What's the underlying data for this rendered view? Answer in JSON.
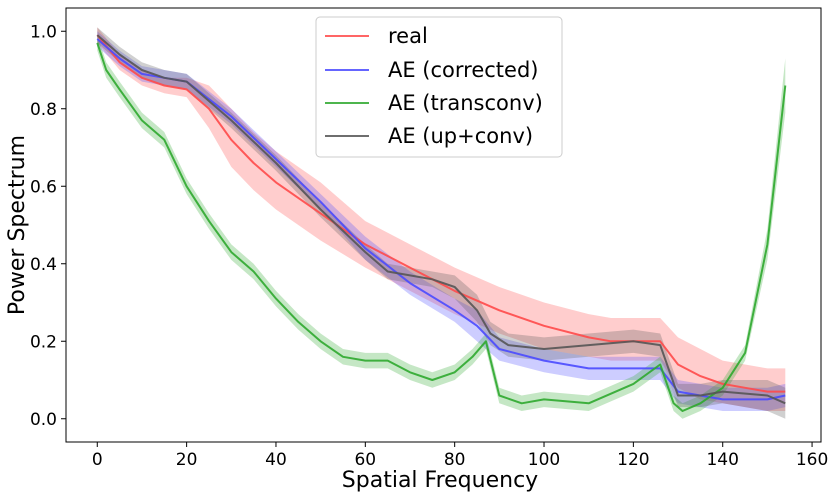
{
  "chart_data": {
    "type": "line",
    "title": "",
    "xlabel": "Spatial Frequency",
    "ylabel": "Power Spectrum",
    "xlim": [
      -7,
      162
    ],
    "ylim": [
      -0.06,
      1.06
    ],
    "xticks": [
      0,
      20,
      40,
      60,
      80,
      100,
      120,
      140,
      160
    ],
    "yticks": [
      0.0,
      0.2,
      0.4,
      0.6,
      0.8,
      1.0
    ],
    "xtick_labels": [
      "0",
      "20",
      "40",
      "60",
      "80",
      "100",
      "120",
      "140",
      "160"
    ],
    "ytick_labels": [
      "0.0",
      "0.2",
      "0.4",
      "0.6",
      "0.8",
      "1.0"
    ],
    "legend_position": "upper-center",
    "series": [
      {
        "name": "real",
        "color": "#ff4a4a",
        "x": [
          0,
          5,
          10,
          15,
          20,
          25,
          30,
          35,
          40,
          50,
          60,
          70,
          80,
          90,
          100,
          110,
          115,
          120,
          126,
          130,
          135,
          140,
          145,
          150,
          154
        ],
        "y": [
          0.99,
          0.92,
          0.88,
          0.86,
          0.85,
          0.8,
          0.72,
          0.66,
          0.61,
          0.53,
          0.45,
          0.39,
          0.33,
          0.28,
          0.24,
          0.21,
          0.2,
          0.2,
          0.2,
          0.14,
          0.11,
          0.09,
          0.08,
          0.07,
          0.07
        ],
        "upper": [
          1.01,
          0.94,
          0.9,
          0.88,
          0.88,
          0.86,
          0.8,
          0.74,
          0.69,
          0.61,
          0.51,
          0.45,
          0.39,
          0.34,
          0.3,
          0.27,
          0.26,
          0.26,
          0.26,
          0.21,
          0.18,
          0.15,
          0.14,
          0.13,
          0.13
        ],
        "lower": [
          0.97,
          0.9,
          0.86,
          0.84,
          0.83,
          0.75,
          0.65,
          0.59,
          0.54,
          0.46,
          0.39,
          0.33,
          0.27,
          0.22,
          0.18,
          0.16,
          0.15,
          0.15,
          0.15,
          0.08,
          0.05,
          0.04,
          0.03,
          0.02,
          0.02
        ]
      },
      {
        "name": "AE (corrected)",
        "color": "#4a4aff",
        "x": [
          0,
          5,
          10,
          15,
          20,
          30,
          40,
          50,
          60,
          70,
          80,
          85,
          90,
          100,
          110,
          120,
          126,
          130,
          140,
          150,
          154
        ],
        "y": [
          0.98,
          0.93,
          0.89,
          0.88,
          0.87,
          0.78,
          0.67,
          0.56,
          0.44,
          0.35,
          0.28,
          0.24,
          0.18,
          0.15,
          0.13,
          0.13,
          0.13,
          0.07,
          0.05,
          0.05,
          0.06
        ],
        "upper": [
          1.0,
          0.95,
          0.91,
          0.9,
          0.89,
          0.8,
          0.69,
          0.58,
          0.47,
          0.38,
          0.31,
          0.28,
          0.21,
          0.18,
          0.16,
          0.16,
          0.16,
          0.1,
          0.08,
          0.08,
          0.09
        ],
        "lower": [
          0.96,
          0.91,
          0.87,
          0.86,
          0.85,
          0.76,
          0.65,
          0.54,
          0.41,
          0.32,
          0.25,
          0.2,
          0.15,
          0.12,
          0.1,
          0.1,
          0.1,
          0.04,
          0.02,
          0.02,
          0.03
        ]
      },
      {
        "name": "AE (transconv)",
        "color": "#2ea82e",
        "x": [
          0,
          2,
          5,
          10,
          15,
          20,
          25,
          30,
          35,
          40,
          45,
          50,
          55,
          60,
          65,
          70,
          75,
          80,
          84,
          87,
          90,
          95,
          100,
          110,
          120,
          126,
          129,
          131,
          135,
          140,
          145,
          150,
          154
        ],
        "y": [
          0.97,
          0.9,
          0.85,
          0.77,
          0.72,
          0.6,
          0.51,
          0.43,
          0.38,
          0.31,
          0.25,
          0.2,
          0.16,
          0.15,
          0.15,
          0.12,
          0.1,
          0.12,
          0.16,
          0.2,
          0.06,
          0.04,
          0.05,
          0.04,
          0.09,
          0.14,
          0.04,
          0.02,
          0.04,
          0.08,
          0.17,
          0.45,
          0.86
        ],
        "upper": [
          0.99,
          0.92,
          0.87,
          0.79,
          0.74,
          0.62,
          0.53,
          0.45,
          0.4,
          0.33,
          0.27,
          0.22,
          0.18,
          0.17,
          0.17,
          0.14,
          0.12,
          0.14,
          0.18,
          0.22,
          0.08,
          0.06,
          0.07,
          0.06,
          0.11,
          0.16,
          0.06,
          0.04,
          0.06,
          0.1,
          0.19,
          0.49,
          0.93
        ],
        "lower": [
          0.95,
          0.88,
          0.83,
          0.75,
          0.7,
          0.58,
          0.49,
          0.41,
          0.36,
          0.29,
          0.23,
          0.18,
          0.14,
          0.13,
          0.13,
          0.1,
          0.08,
          0.1,
          0.14,
          0.18,
          0.04,
          0.02,
          0.03,
          0.02,
          0.07,
          0.12,
          0.02,
          0.0,
          0.02,
          0.06,
          0.15,
          0.41,
          0.79
        ]
      },
      {
        "name": "AE (up+conv)",
        "color": "#555555",
        "x": [
          0,
          5,
          10,
          15,
          20,
          30,
          40,
          50,
          60,
          65,
          70,
          75,
          80,
          85,
          88,
          92,
          100,
          110,
          120,
          126,
          130,
          135,
          140,
          150,
          154
        ],
        "y": [
          0.99,
          0.94,
          0.9,
          0.88,
          0.87,
          0.77,
          0.66,
          0.54,
          0.43,
          0.38,
          0.37,
          0.36,
          0.34,
          0.28,
          0.22,
          0.19,
          0.18,
          0.19,
          0.2,
          0.19,
          0.06,
          0.06,
          0.07,
          0.06,
          0.04
        ],
        "upper": [
          1.01,
          0.96,
          0.92,
          0.9,
          0.89,
          0.79,
          0.68,
          0.56,
          0.45,
          0.4,
          0.39,
          0.38,
          0.37,
          0.32,
          0.25,
          0.22,
          0.21,
          0.22,
          0.23,
          0.22,
          0.09,
          0.09,
          0.1,
          0.1,
          0.08
        ],
        "lower": [
          0.97,
          0.92,
          0.88,
          0.86,
          0.85,
          0.75,
          0.64,
          0.52,
          0.41,
          0.36,
          0.35,
          0.34,
          0.31,
          0.25,
          0.19,
          0.16,
          0.15,
          0.16,
          0.17,
          0.16,
          0.03,
          0.03,
          0.04,
          0.02,
          0.0
        ]
      }
    ]
  }
}
